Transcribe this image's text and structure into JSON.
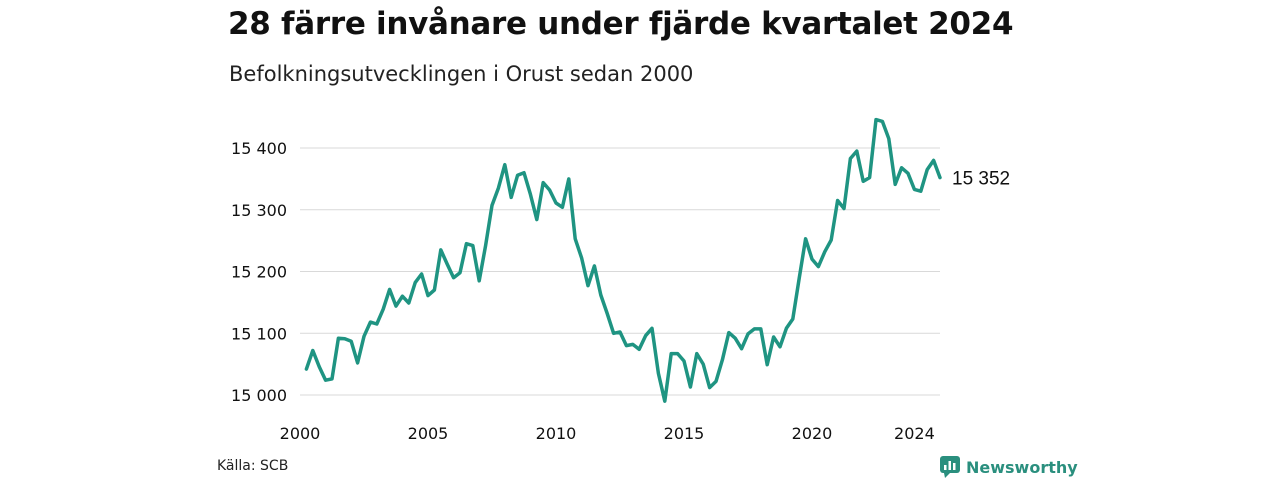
{
  "title": "28 färre invånare under fjärde kvartalet 2024",
  "subtitle": "Befolkningsutvecklingen i Orust sedan 2000",
  "source": "Källa: SCB",
  "brand": {
    "name": "Newsworthy",
    "icon": "newsworthy-logo-icon",
    "color": "#2a8f7e"
  },
  "chart_data": {
    "type": "line",
    "title": "",
    "xlabel": "",
    "ylabel": "",
    "ylim": [
      15000,
      15400
    ],
    "yticks": [
      15000,
      15100,
      15200,
      15300,
      15400
    ],
    "ytick_labels": [
      "15 000",
      "15 100",
      "15 200",
      "15 300",
      "15 400"
    ],
    "xticks": [
      2000,
      2005,
      2010,
      2015,
      2020,
      2024
    ],
    "xtick_labels": [
      "2000",
      "2005",
      "2010",
      "2015",
      "2020",
      "2024"
    ],
    "grid": true,
    "line_color": "#1f9482",
    "end_label": "15 352",
    "x": [
      2000.25,
      2000.5,
      2000.75,
      2001.0,
      2001.25,
      2001.5,
      2001.75,
      2002.0,
      2002.25,
      2002.5,
      2002.75,
      2003.0,
      2003.25,
      2003.5,
      2003.75,
      2004.0,
      2004.25,
      2004.5,
      2004.75,
      2005.0,
      2005.25,
      2005.5,
      2005.75,
      2006.0,
      2006.25,
      2006.5,
      2006.75,
      2007.0,
      2007.25,
      2007.5,
      2007.75,
      2008.0,
      2008.25,
      2008.5,
      2008.75,
      2009.0,
      2009.25,
      2009.5,
      2009.75,
      2010.0,
      2010.25,
      2010.5,
      2010.75,
      2011.0,
      2011.25,
      2011.5,
      2011.75,
      2012.0,
      2012.25,
      2012.5,
      2012.75,
      2013.0,
      2013.25,
      2013.5,
      2013.75,
      2014.0,
      2014.25,
      2014.5,
      2014.75,
      2015.0,
      2015.25,
      2015.5,
      2015.75,
      2016.0,
      2016.25,
      2016.5,
      2016.75,
      2017.0,
      2017.25,
      2017.5,
      2017.75,
      2018.0,
      2018.25,
      2018.5,
      2018.75,
      2019.0,
      2019.25,
      2019.5,
      2019.75,
      2020.0,
      2020.25,
      2020.5,
      2020.75,
      2021.0,
      2021.25,
      2021.5,
      2021.75,
      2022.0,
      2022.25,
      2022.5,
      2022.75,
      2023.0,
      2023.25,
      2023.5,
      2023.75,
      2024.0,
      2024.25,
      2024.5,
      2024.75,
      2025.0
    ],
    "values": [
      15042,
      15072,
      15046,
      15024,
      15026,
      15092,
      15091,
      15087,
      15052,
      15095,
      15118,
      15115,
      15139,
      15171,
      15144,
      15160,
      15149,
      15182,
      15196,
      15161,
      15170,
      15235,
      15212,
      15190,
      15198,
      15245,
      15242,
      15185,
      15242,
      15307,
      15335,
      15373,
      15320,
      15356,
      15360,
      15325,
      15284,
      15344,
      15332,
      15311,
      15304,
      15350,
      15253,
      15222,
      15177,
      15209,
      15162,
      15132,
      15100,
      15102,
      15080,
      15082,
      15074,
      15096,
      15108,
      15035,
      14990,
      15067,
      15067,
      15055,
      15013,
      15067,
      15050,
      15012,
      15022,
      15057,
      15101,
      15092,
      15075,
      15099,
      15107,
      15107,
      15049,
      15094,
      15078,
      15108,
      15123,
      15189,
      15253,
      15220,
      15208,
      15232,
      15251,
      15315,
      15302,
      15383,
      15395,
      15346,
      15352,
      15446,
      15443,
      15415,
      15341,
      15368,
      15359,
      15333,
      15330,
      15365,
      15380,
      15352
    ]
  }
}
